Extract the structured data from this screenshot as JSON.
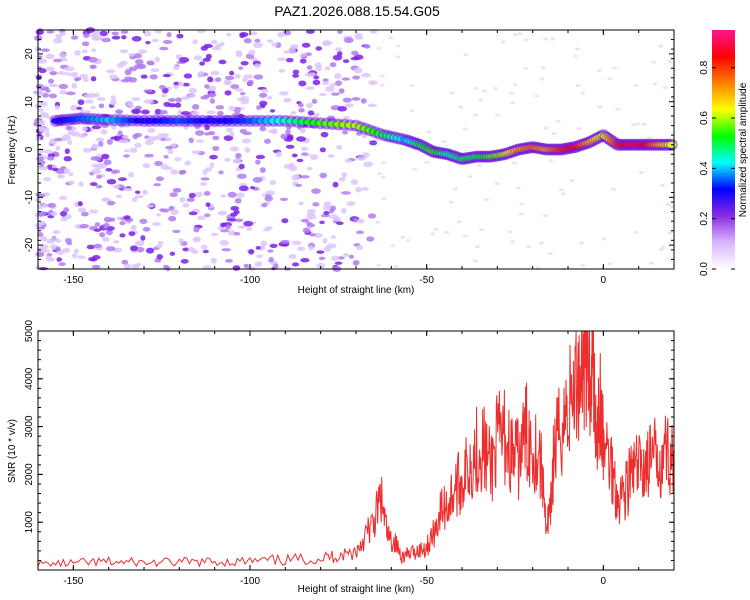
{
  "title": "PAZ1.2026.088.15.54.G05",
  "chart_data": [
    {
      "type": "heatmap",
      "panel": "top",
      "xlabel": "Height of straight line (km)",
      "ylabel": "Frequency (Hz)",
      "xlim": [
        -160,
        20
      ],
      "ylim": [
        -25,
        25
      ],
      "xticks": [
        -150,
        -100,
        -50,
        0
      ],
      "yticks": [
        -20,
        -10,
        0,
        10,
        20
      ],
      "colorbar": {
        "label": "Normalized spectral amplitude",
        "range": [
          0.0,
          0.95
        ],
        "ticks": [
          0.0,
          0.2,
          0.4,
          0.6,
          0.8
        ],
        "colors": [
          "#ffffff",
          "#d8b6ff",
          "#8a2be2",
          "#0000ff",
          "#00ffff",
          "#00ff00",
          "#ffff00",
          "#ff8000",
          "#ff0000",
          "#ff1493"
        ]
      },
      "ridge": {
        "x": [
          -155,
          -148,
          -140,
          -130,
          -120,
          -110,
          -100,
          -90,
          -80,
          -70,
          -62,
          -56,
          -52,
          -48,
          -44,
          -40,
          -36,
          -32,
          -28,
          -24,
          -20,
          -16,
          -12,
          -8,
          -4,
          0,
          4,
          8,
          12,
          16,
          20
        ],
        "y": [
          6,
          6.5,
          6.2,
          6,
          6,
          6,
          6,
          6,
          5.5,
          5,
          3,
          2,
          1,
          -0.5,
          -1,
          -2,
          -1.5,
          -1.5,
          -1,
          0,
          0.5,
          0,
          0,
          0.5,
          1.5,
          3,
          1,
          1,
          1,
          1,
          1
        ],
        "amplitude": [
          0.3,
          0.35,
          0.4,
          0.3,
          0.35,
          0.3,
          0.35,
          0.45,
          0.55,
          0.6,
          0.5,
          0.4,
          0.5,
          0.55,
          0.45,
          0.5,
          0.5,
          0.55,
          0.6,
          0.7,
          0.75,
          0.7,
          0.8,
          0.85,
          0.7,
          0.6,
          0.8,
          0.9,
          0.85,
          0.7,
          0.6
        ]
      }
    },
    {
      "type": "line",
      "panel": "bottom",
      "xlabel": "Height of straight line (km)",
      "ylabel": "SNR (10 * v/v)",
      "xlim": [
        -160,
        20
      ],
      "ylim": [
        0,
        5000
      ],
      "xticks": [
        -150,
        -100,
        -50,
        0
      ],
      "yticks": [
        1000,
        2000,
        3000,
        4000,
        5000
      ],
      "series": [
        {
          "name": "SNR",
          "color": "#ee2d2d",
          "x": [
            -160,
            -150,
            -140,
            -130,
            -120,
            -110,
            -100,
            -90,
            -80,
            -75,
            -70,
            -67,
            -65,
            -63,
            -61,
            -59,
            -57,
            -55,
            -52,
            -50,
            -48,
            -46,
            -44,
            -42,
            -40,
            -38,
            -36,
            -34,
            -32,
            -30,
            -28,
            -26,
            -24,
            -22,
            -20,
            -18,
            -16,
            -15,
            -14,
            -12,
            -10,
            -8,
            -6,
            -5,
            -4,
            -3,
            -2,
            -1,
            0,
            2,
            4,
            6,
            8,
            10,
            12,
            14,
            16,
            18,
            20
          ],
          "y": [
            120,
            150,
            180,
            160,
            170,
            180,
            190,
            220,
            260,
            320,
            400,
            800,
            1000,
            1600,
            700,
            600,
            300,
            350,
            450,
            500,
            800,
            1300,
            1400,
            1800,
            1900,
            2300,
            2600,
            2700,
            2200,
            2800,
            2900,
            2500,
            2400,
            3000,
            2700,
            2500,
            1000,
            1200,
            2500,
            3100,
            3500,
            4000,
            4600,
            5000,
            4200,
            4800,
            3000,
            3600,
            2700,
            2400,
            1600,
            1700,
            2100,
            2200,
            2300,
            2400,
            2500,
            2600,
            2400
          ]
        }
      ]
    }
  ]
}
